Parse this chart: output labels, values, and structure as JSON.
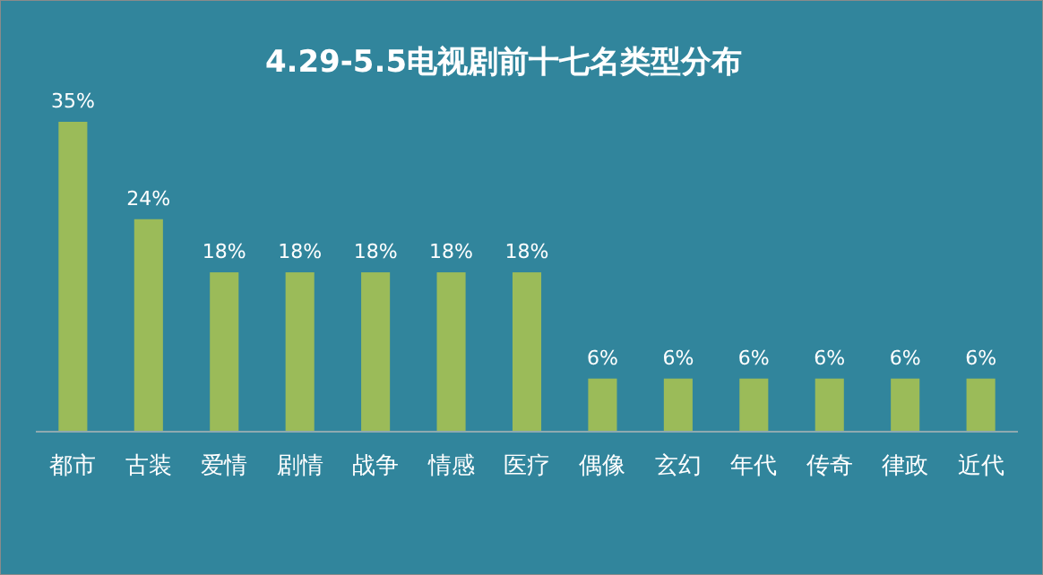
{
  "chart_data": {
    "type": "bar",
    "title": "4.29-5.5电视剧前十七名类型分布",
    "categories": [
      "都市",
      "古装",
      "爱情",
      "剧情",
      "战争",
      "情感",
      "医疗",
      "偶像",
      "玄幻",
      "年代",
      "传奇",
      "律政",
      "近代"
    ],
    "values": [
      35,
      24,
      18,
      18,
      18,
      18,
      18,
      6,
      6,
      6,
      6,
      6,
      6
    ],
    "value_labels": [
      "35%",
      "24%",
      "18%",
      "18%",
      "18%",
      "18%",
      "18%",
      "6%",
      "6%",
      "6%",
      "6%",
      "6%",
      "6%"
    ],
    "color": "#9bbb59"
  }
}
